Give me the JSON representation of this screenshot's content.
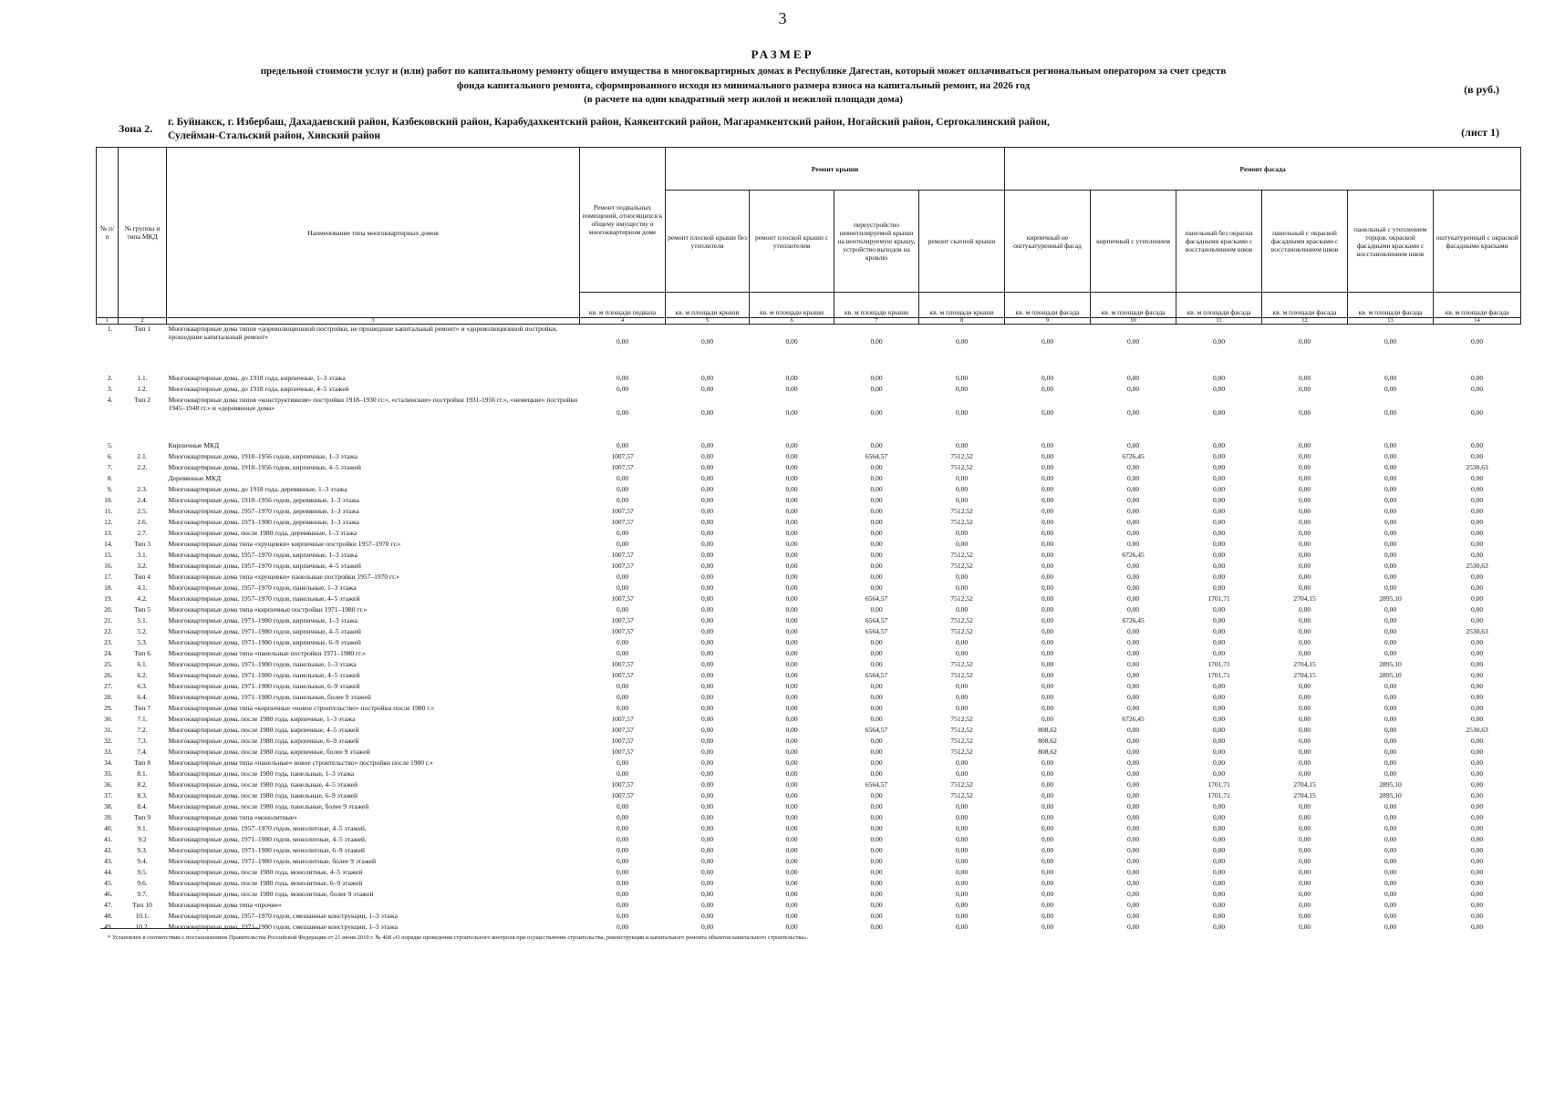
{
  "header": {
    "page_number": "3",
    "title": "РАЗМЕР",
    "subtitle": [
      "предельной стоимости услуг и (или) работ по капитальному ремонту общего имущества в многоквартирных домах в Республике Дагестан, который может оплачиваться региональным оператором  за счет средств",
      "фонда капитального ремонта, сформированного исходя из минимального размера взноса на капитальный ремонт, на 2026 год",
      "(в расчете на один квадратный метр жилой и нежилой площади дома)"
    ],
    "currency": "(в руб.)",
    "zone_label": "Зона 2.",
    "zone_text": [
      "г. Буйнакск, г. Избербаш,  Дахадаевский район, Казбековский район, Карабудахкентский район, Каякентский район, Магарамкентский район, Ногайский район, Сергокалинский район,",
      "Сулейман-Стальский район, Хивский район"
    ],
    "sheet": "(лист 1)"
  },
  "table": {
    "head_cols": [
      "№ п/п",
      "№ группы и типа МКД",
      "Наименование типа многоквартирных домов",
      "Ремонт подвальных помещений, относящихся к общему имуществу в многоквартирном доме"
    ],
    "groups": [
      "Ремонт крыши",
      "Ремонт фасада"
    ],
    "subcols": [
      "ремонт плоской крыши без утеплителя",
      "ремонт плоской крыши с утеплителем",
      "переустройство невентилируемой крыши на вентилируемую крышу, устройство выходов на кровлю",
      "ремонт скатной крыши",
      "кирпичный не оштукатуренный фасад",
      "кирпичный с утеплением",
      "панельный без окраски фасадными красками с восстановлением швов",
      "панельный с окраской фасадными красками с восстановлением швов",
      "панельный с утеплением торцов, окраской фасадными красками с восстановлением швов",
      "оштукатуренный с окраской фасадными красками"
    ],
    "units": [
      "кв. м площади подвала",
      "кв. м площади крыши",
      "кв. м площади крыши",
      "кв. м площади крыши",
      "кв. м площади крыши",
      "кв. м площади фасада",
      "кв. м площади фасада",
      "кв. м площади фасада",
      "кв. м площади фасада",
      "кв. м площади фасада",
      "кв. м площади фасада"
    ],
    "col_numbers": [
      "1",
      "2",
      "3",
      "4",
      "5",
      "6",
      "7",
      "8",
      "9",
      "10",
      "11",
      "12",
      "13",
      "14"
    ],
    "rows": [
      [
        "1.",
        "Тип 1",
        "Многоквартирные дома типов «дореволюционной постройки, не прошедшие капитальный ремонт» и «дореволюционной постройки, прошедшие капитальный ремонт»",
        "0,00",
        "0,00",
        "0,00",
        "0,00",
        "0,00",
        "0,00",
        "0,00",
        "0,00",
        "0,00",
        "0,00",
        "0,00"
      ],
      [
        "2.",
        "1.1.",
        "Многоквартирные дома, до 1918 года, кирпичные, 1–3 этажа",
        "0,00",
        "0,00",
        "0,00",
        "0,00",
        "0,00",
        "0,00",
        "0,00",
        "0,00",
        "0,00",
        "0,00",
        "0,00"
      ],
      [
        "3.",
        "1.2.",
        "Многоквартирные дома, до 1918 года, кирпичные, 4–5 этажей",
        "0,00",
        "0,00",
        "0,00",
        "0,00",
        "0,00",
        "0,00",
        "0,00",
        "0,00",
        "0,00",
        "0,00",
        "0,00"
      ],
      [
        "4.",
        "Тип 2",
        "Многоквартирные дома типов «конструктивизм» постройки 1918–1930 гг.», «сталинские» постройки 1931-1956 гг.», «немецкие» постройки 1945–1948 гг.» и «деревянные дома»",
        "0,00",
        "0,00",
        "0,00",
        "0,00",
        "0,00",
        "0,00",
        "0,00",
        "0,00",
        "0,00",
        "0,00",
        "0,00"
      ],
      [
        "5.",
        null,
        "Кирпичные МКД",
        "0,00",
        "0,00",
        "0,00",
        "0,00",
        "0,00",
        "0,00",
        "0,00",
        "0,00",
        "0,00",
        "0,00",
        "0,00"
      ],
      [
        "6.",
        "2.1.",
        "Многоквартирные дома, 1918–1956 годов, кирпичные, 1–3 этажа",
        "1007,57",
        "0,00",
        "0,00",
        "6564,57",
        "7512,52",
        "0,00",
        "6726,45",
        "0,00",
        "0,00",
        "0,00",
        "0,00"
      ],
      [
        "7.",
        "2.2.",
        "Многоквартирные дома, 1918–1956 годов, кирпичные, 4–5 этажей",
        "1007,57",
        "0,00",
        "0,00",
        "0,00",
        "7512,52",
        "0,00",
        "0,00",
        "0,00",
        "0,00",
        "0,00",
        "2530,63"
      ],
      [
        "8.",
        null,
        "Деревянные МКД",
        "0,00",
        "0,00",
        "0,00",
        "0,00",
        "0,00",
        "0,00",
        "0,00",
        "0,00",
        "0,00",
        "0,00",
        "0,00"
      ],
      [
        "9.",
        "2.3.",
        "Многоквартирные дома, до 1918 года, деревянные, 1–3 этажа",
        "0,00",
        "0,00",
        "0,00",
        "0,00",
        "0,00",
        "0,00",
        "0,00",
        "0,00",
        "0,00",
        "0,00",
        "0,00"
      ],
      [
        "10.",
        "2.4.",
        "Многоквартирные дома, 1918–1956 годов, деревянные, 1–3 этажа",
        "0,00",
        "0,00",
        "0,00",
        "0,00",
        "0,00",
        "0,00",
        "0,00",
        "0,00",
        "0,00",
        "0,00",
        "0,00"
      ],
      [
        "11.",
        "2.5.",
        "Многоквартирные дома, 1957–1970 годов, деревянные, 1–3 этажа",
        "1007,57",
        "0,00",
        "0,00",
        "0,00",
        "7512,52",
        "0,00",
        "0,00",
        "0,00",
        "0,00",
        "0,00",
        "0,00"
      ],
      [
        "12.",
        "2.6.",
        "Многоквартирные дома, 1971–1980 годов, деревянные, 1–3 этажа",
        "1007,57",
        "0,00",
        "0,00",
        "0,00",
        "7512,52",
        "0,00",
        "0,00",
        "0,00",
        "0,00",
        "0,00",
        "0,00"
      ],
      [
        "13.",
        "2.7.",
        "Многоквартирные дома, после 1980 года, деревянные, 1–3 этажа",
        "0,00",
        "0,00",
        "0,00",
        "0,00",
        "0,00",
        "0,00",
        "0,00",
        "0,00",
        "0,00",
        "0,00",
        "0,00"
      ],
      [
        "14.",
        "Тип 3",
        "Многоквартирные дома типа «хрущевки» кирпичные постройки 1957–1970 гг.»",
        "0,00",
        "0,00",
        "0,00",
        "0,00",
        "0,00",
        "0,00",
        "0,00",
        "0,00",
        "0,00",
        "0,00",
        "0,00"
      ],
      [
        "15.",
        "3.1.",
        "Многоквартирные дома, 1957–1970 годов, кирпичные, 1–3 этажа",
        "1007,57",
        "0,00",
        "0,00",
        "0,00",
        "7512,52",
        "0,00",
        "6726,45",
        "0,00",
        "0,00",
        "0,00",
        "0,00"
      ],
      [
        "16.",
        "3.2.",
        "Многоквартирные дома, 1957–1970 годов, кирпичные, 4–5 этажей",
        "1007,57",
        "0,00",
        "0,00",
        "0,00",
        "7512,52",
        "0,00",
        "0,00",
        "0,00",
        "0,00",
        "0,00",
        "2530,63"
      ],
      [
        "17.",
        "Тип 4",
        "Многоквартирные дома типа «хрущевки» панельные постройки 1957–1970 гг.»",
        "0,00",
        "0,00",
        "0,00",
        "0,00",
        "0,00",
        "0,00",
        "0,00",
        "0,00",
        "0,00",
        "0,00",
        "0,00"
      ],
      [
        "18.",
        "4.1.",
        "Многоквартирные дома, 1957–1970 годов, панельные, 1–3 этажа",
        "0,00",
        "0,00",
        "0,00",
        "0,00",
        "0,00",
        "0,00",
        "0,00",
        "0,00",
        "0,00",
        "0,00",
        "0,00"
      ],
      [
        "19.",
        "4.2.",
        "Многоквартирные дома, 1957–1970 годов, панельные, 4–5 этажей",
        "1007,57",
        "0,00",
        "0,00",
        "6564,57",
        "7512,52",
        "0,00",
        "0,00",
        "1701,71",
        "2704,15",
        "2895,10",
        "0,00"
      ],
      [
        "20.",
        "Тип 5",
        "Многоквартирные дома типа «кирпичные постройки 1971–1980 гг.»",
        "0,00",
        "0,00",
        "0,00",
        "0,00",
        "0,00",
        "0,00",
        "0,00",
        "0,00",
        "0,00",
        "0,00",
        "0,00"
      ],
      [
        "21.",
        "5.1.",
        "Многоквартирные дома, 1971–1980 годов, кирпичные, 1–3 этажа",
        "1007,57",
        "0,00",
        "0,00",
        "6564,57",
        "7512,52",
        "0,00",
        "6726,45",
        "0,00",
        "0,00",
        "0,00",
        "0,00"
      ],
      [
        "22.",
        "5.2.",
        "Многоквартирные дома, 1971–1980 годов, кирпичные, 4–5 этажей",
        "1007,57",
        "0,00",
        "0,00",
        "6564,57",
        "7512,52",
        "0,00",
        "0,00",
        "0,00",
        "0,00",
        "0,00",
        "2530,63"
      ],
      [
        "23.",
        "5.3.",
        "Многоквартирные дома, 1971–1980 годов, кирпичные, 6–9 этажей",
        "0,00",
        "0,00",
        "0,00",
        "0,00",
        "0,00",
        "0,00",
        "0,00",
        "0,00",
        "0,00",
        "0,00",
        "0,00"
      ],
      [
        "24.",
        "Тип 6",
        "Многоквартирные дома типа «панельные постройки 1971–1980 гг.»",
        "0,00",
        "0,00",
        "0,00",
        "0,00",
        "0,00",
        "0,00",
        "0,00",
        "0,00",
        "0,00",
        "0,00",
        "0,00"
      ],
      [
        "25.",
        "6.1.",
        "Многоквартирные дома, 1971–1980 годов, панельные, 1–3 этажа",
        "1007,57",
        "0,00",
        "0,00",
        "0,00",
        "7512,52",
        "0,00",
        "0,00",
        "1701,71",
        "2704,15",
        "2895,10",
        "0,00"
      ],
      [
        "26.",
        "6.2.",
        "Многоквартирные дома, 1971–1980 годов, панельные, 4–5 этажей",
        "1007,57",
        "0,00",
        "0,00",
        "6564,57",
        "7512,52",
        "0,00",
        "0,00",
        "1701,71",
        "2704,15",
        "2895,10",
        "0,00"
      ],
      [
        "27.",
        "6.3.",
        "Многоквартирные дома, 1971–1980 годов, панельные, 6–9 этажей",
        "0,00",
        "0,00",
        "0,00",
        "0,00",
        "0,00",
        "0,00",
        "0,00",
        "0,00",
        "0,00",
        "0,00",
        "0,00"
      ],
      [
        "28.",
        "6.4.",
        "Многоквартирные дома, 1971–1980 годов, панельные, более 9 этажей",
        "0,00",
        "0,00",
        "0,00",
        "0,00",
        "0,00",
        "0,00",
        "0,00",
        "0,00",
        "0,00",
        "0,00",
        "0,00"
      ],
      [
        "29.",
        "Тип 7",
        "Многоквартирные дома типа «кирпичные «новое строительство» постройки после 1980 г.»",
        "0,00",
        "0,00",
        "0,00",
        "0,00",
        "0,00",
        "0,00",
        "0,00",
        "0,00",
        "0,00",
        "0,00",
        "0,00"
      ],
      [
        "30.",
        "7.1.",
        "Многоквартирные дома, после 1980 года, кирпичные, 1–3 этажа",
        "1007,57",
        "0,00",
        "0,00",
        "0,00",
        "7512,52",
        "0,00",
        "6726,45",
        "0,00",
        "0,00",
        "0,00",
        "0,00"
      ],
      [
        "31.",
        "7.2.",
        "Многоквартирные дома, после 1980 года, кирпичные, 4–5 этажей",
        "1007,57",
        "0,00",
        "0,00",
        "6564,57",
        "7512,52",
        "808,62",
        "0,00",
        "0,00",
        "0,00",
        "0,00",
        "2530,63"
      ],
      [
        "32.",
        "7.3.",
        "Многоквартирные дома, после 1980 года, кирпичные, 6–9 этажей",
        "1007,57",
        "0,00",
        "0,00",
        "0,00",
        "7512,52",
        "808,62",
        "0,00",
        "0,00",
        "0,00",
        "0,00",
        "0,00"
      ],
      [
        "33.",
        "7.4.",
        "Многоквартирные дома, после 1980 года, кирпичные, более 9 этажей",
        "1007,57",
        "0,00",
        "0,00",
        "0,00",
        "7512,52",
        "808,62",
        "0,00",
        "0,00",
        "0,00",
        "0,00",
        "0,00"
      ],
      [
        "34.",
        "Тип 8",
        "Многоквартирные дома типа «панельные» новое строительство» постройки после 1980 г.»",
        "0,00",
        "0,00",
        "0,00",
        "0,00",
        "0,00",
        "0,00",
        "0,00",
        "0,00",
        "0,00",
        "0,00",
        "0,00"
      ],
      [
        "35.",
        "8.1.",
        "Многоквартирные дома, после 1980 года, панельные, 1–3 этажа",
        "0,00",
        "0,00",
        "0,00",
        "0,00",
        "0,00",
        "0,00",
        "0,00",
        "0,00",
        "0,00",
        "0,00",
        "0,00"
      ],
      [
        "36.",
        "8.2.",
        "Многоквартирные дома, после 1980 года, панельные, 4–5 этажей",
        "1007,57",
        "0,00",
        "0,00",
        "6564,57",
        "7512,52",
        "0,00",
        "0,00",
        "1701,71",
        "2704,15",
        "2895,10",
        "0,00"
      ],
      [
        "37.",
        "8.3.",
        "Многоквартирные дома, после 1980 года, панельные, 6–9 этажей",
        "1007,57",
        "0,00",
        "0,00",
        "0,00",
        "7512,52",
        "0,00",
        "0,00",
        "1701,71",
        "2704,15",
        "2895,10",
        "0,00"
      ],
      [
        "38.",
        "8.4.",
        "Многоквартирные дома, после 1980 года, панельные, более 9 этажей",
        "0,00",
        "0,00",
        "0,00",
        "0,00",
        "0,00",
        "0,00",
        "0,00",
        "0,00",
        "0,00",
        "0,00",
        "0,00"
      ],
      [
        "39.",
        "Тип 9",
        "Многоквартирные дома типа «монолитные»",
        "0,00",
        "0,00",
        "0,00",
        "0,00",
        "0,00",
        "0,00",
        "0,00",
        "0,00",
        "0,00",
        "0,00",
        "0,00"
      ],
      [
        "40.",
        "9.1.",
        "Многоквартирные дома, 1957–1970 годов, монолитные, 4–5 этажей,",
        "0,00",
        "0,00",
        "0,00",
        "0,00",
        "0,00",
        "0,00",
        "0,00",
        "0,00",
        "0,00",
        "0,00",
        "0,00"
      ],
      [
        "41.",
        "9.2",
        "Многоквартирные дома, 1971–1980 годов, монолитные, 4–5 этажей,",
        "0,00",
        "0,00",
        "0,00",
        "0,00",
        "0,00",
        "0,00",
        "0,00",
        "0,00",
        "0,00",
        "0,00",
        "0,00"
      ],
      [
        "42.",
        "9.3.",
        "Многоквартирные дома, 1971–1980 годов, монолитные, 6–9 этажей",
        "0,00",
        "0,00",
        "0,00",
        "0,00",
        "0,00",
        "0,00",
        "0,00",
        "0,00",
        "0,00",
        "0,00",
        "0,00"
      ],
      [
        "43.",
        "9.4.",
        "Многоквартирные дома, 1971–1980 годов, монолитные, более 9 этажей",
        "0,00",
        "0,00",
        "0,00",
        "0,00",
        "0,00",
        "0,00",
        "0,00",
        "0,00",
        "0,00",
        "0,00",
        "0,00"
      ],
      [
        "44.",
        "9.5.",
        "Многоквартирные дома, после 1980 года, монолитные, 4–5 этажей",
        "0,00",
        "0,00",
        "0,00",
        "0,00",
        "0,00",
        "0,00",
        "0,00",
        "0,00",
        "0,00",
        "0,00",
        "0,00"
      ],
      [
        "45.",
        "9.6.",
        "Многоквартирные дома, после 1980 года, монолитные, 6–9 этажей",
        "0,00",
        "0,00",
        "0,00",
        "0,00",
        "0,00",
        "0,00",
        "0,00",
        "0,00",
        "0,00",
        "0,00",
        "0,00"
      ],
      [
        "46.",
        "9.7.",
        "Многоквартирные дома, после 1980 года, монолитные, более 9 этажей",
        "0,00",
        "0,00",
        "0,00",
        "0,00",
        "0,00",
        "0,00",
        "0,00",
        "0,00",
        "0,00",
        "0,00",
        "0,00"
      ],
      [
        "47.",
        "Тип 10",
        "Многоквартирные дома типа «прочие»",
        "0,00",
        "0,00",
        "0,00",
        "0,00",
        "0,00",
        "0,00",
        "0,00",
        "0,00",
        "0,00",
        "0,00",
        "0,00"
      ],
      [
        "48.",
        "10.1.",
        "Многоквартирные дома, 1957–1970 годов, смешанные конструкции, 1–3 этажа",
        "0,00",
        "0,00",
        "0,00",
        "0,00",
        "0,00",
        "0,00",
        "0,00",
        "0,00",
        "0,00",
        "0,00",
        "0,00"
      ],
      [
        "49.",
        "10.2.",
        "Многоквартирные дома, 1971–1980 годов, смешанные конструкции, 1–3 этажа",
        "0,00",
        "0,00",
        "0,00",
        "0,00",
        "0,00",
        "0,00",
        "0,00",
        "0,00",
        "0,00",
        "0,00",
        "0,00"
      ]
    ]
  },
  "footnote": "* Установлен в соответствии с постановлением Правительства Российской Федерации от 21 июня 2010 г. № 468 «О порядке проведения строительного контроля при осуществлении строительства, реконструкции и капитального ремонта объектов капитального строительства»."
}
